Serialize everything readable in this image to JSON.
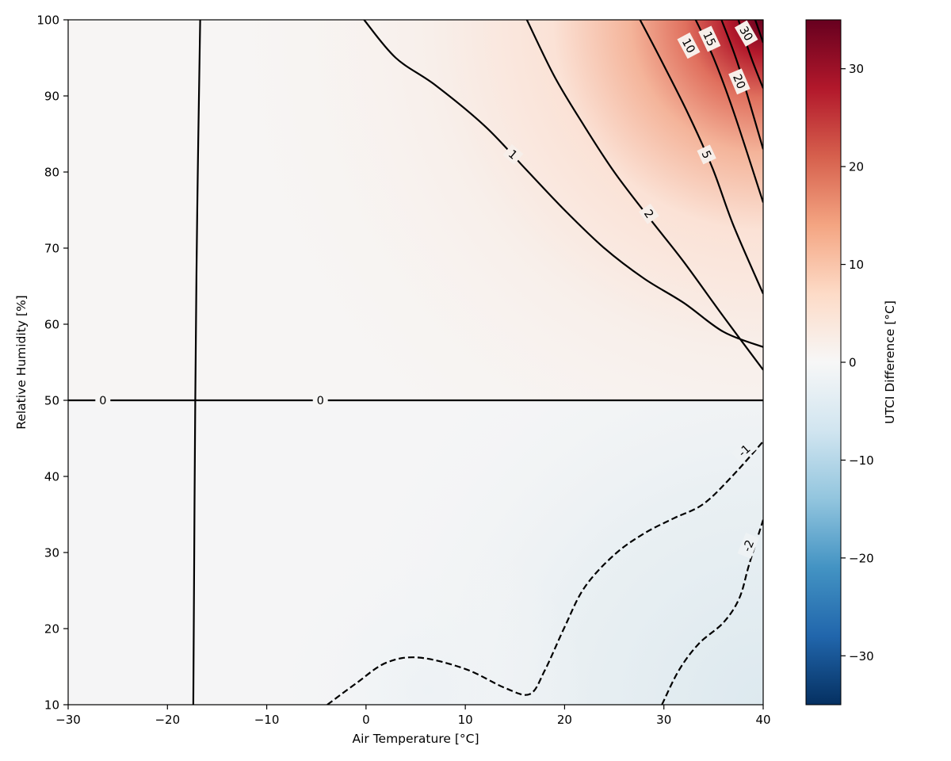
{
  "chart_data": {
    "type": "contour",
    "xlabel": "Air Temperature [°C]",
    "ylabel": "Relative Humidity [%]",
    "xlim": [
      -30,
      40
    ],
    "ylim": [
      10,
      100
    ],
    "x_ticks": [
      -30,
      -20,
      -10,
      0,
      10,
      20,
      30,
      40
    ],
    "y_ticks": [
      10,
      20,
      30,
      40,
      50,
      60,
      70,
      80,
      90,
      100
    ],
    "x_tick_labels": [
      "−30",
      "−20",
      "−10",
      "0",
      "10",
      "20",
      "30",
      "40"
    ],
    "y_tick_labels": [
      "10",
      "20",
      "30",
      "40",
      "50",
      "60",
      "70",
      "80",
      "90",
      "100"
    ],
    "colorbar": {
      "label": "UTCI Difference [°C]",
      "range": [
        -35,
        35
      ],
      "ticks": [
        -30,
        -20,
        -10,
        0,
        10,
        20,
        30
      ],
      "tick_labels": [
        "−30",
        "−20",
        "−10",
        "0",
        "10",
        "20",
        "30"
      ],
      "colormap": "RdBu_r",
      "colors": [
        "#053061",
        "#2166ac",
        "#4393c3",
        "#92c5de",
        "#d1e5f0",
        "#f7f7f7",
        "#fddbc7",
        "#f4a582",
        "#d6604d",
        "#b2182b",
        "#67001f"
      ]
    },
    "contours": [
      {
        "level": 0,
        "label": "0",
        "style": "solid",
        "points": [
          [
            -30,
            50
          ],
          [
            -17.2,
            50
          ],
          [
            40,
            50
          ]
        ]
      },
      {
        "level": 0,
        "label": "",
        "style": "solid",
        "points": [
          [
            -16.7,
            100
          ],
          [
            -17.0,
            75
          ],
          [
            -17.2,
            50
          ],
          [
            -17.3,
            30
          ],
          [
            -17.4,
            10
          ]
        ]
      },
      {
        "level": 1,
        "label": "1",
        "style": "solid",
        "points": [
          [
            -0.2,
            100
          ],
          [
            3,
            95
          ],
          [
            7,
            91.4
          ],
          [
            12,
            86
          ],
          [
            16,
            80.5
          ],
          [
            20,
            75
          ],
          [
            24,
            70
          ],
          [
            28,
            66
          ],
          [
            32,
            62.8
          ],
          [
            36,
            59
          ],
          [
            40,
            57
          ]
        ]
      },
      {
        "level": 2,
        "label": "2",
        "style": "solid",
        "points": [
          [
            16.2,
            100
          ],
          [
            19,
            92.5
          ],
          [
            22,
            86
          ],
          [
            25,
            80
          ],
          [
            28.5,
            74
          ],
          [
            32,
            68.2
          ],
          [
            36,
            61
          ],
          [
            40,
            54
          ]
        ]
      },
      {
        "level": 5,
        "label": "5",
        "style": "solid",
        "points": [
          [
            27.6,
            100
          ],
          [
            30,
            94
          ],
          [
            32.5,
            87.5
          ],
          [
            34.9,
            80.5
          ],
          [
            37,
            73
          ],
          [
            40,
            64
          ]
        ]
      },
      {
        "level": 10,
        "label": "10",
        "style": "solid",
        "points": [
          [
            33.2,
            100
          ],
          [
            35,
            95
          ],
          [
            37,
            88
          ],
          [
            40,
            76
          ]
        ]
      },
      {
        "level": 15,
        "label": "15",
        "style": "solid",
        "points": [
          [
            35.8,
            100
          ],
          [
            37.5,
            94
          ],
          [
            40,
            83
          ]
        ]
      },
      {
        "level": 20,
        "label": "20",
        "style": "solid",
        "points": [
          [
            37.5,
            100
          ],
          [
            38.8,
            95
          ],
          [
            40,
            91
          ]
        ]
      },
      {
        "level": 30,
        "label": "30",
        "style": "solid",
        "points": [
          [
            39.2,
            100
          ],
          [
            40,
            97
          ]
        ]
      },
      {
        "level": -1,
        "label": "-1",
        "style": "dashed",
        "points": [
          [
            -3.9,
            10
          ],
          [
            -1,
            12.8
          ],
          [
            2,
            15.5
          ],
          [
            5.3,
            16.2
          ],
          [
            10,
            14.7
          ],
          [
            14,
            12.2
          ],
          [
            16.5,
            11.4
          ],
          [
            18,
            14.5
          ],
          [
            20,
            20.2
          ],
          [
            22,
            25.4
          ],
          [
            25,
            29.7
          ],
          [
            28,
            32.5
          ],
          [
            31,
            34.5
          ],
          [
            34,
            36.4
          ],
          [
            37,
            40.2
          ],
          [
            40,
            44.6
          ]
        ]
      },
      {
        "level": -2,
        "label": "-2",
        "style": "dashed",
        "points": [
          [
            29.8,
            10
          ],
          [
            31.5,
            14.5
          ],
          [
            33.5,
            18
          ],
          [
            36,
            20.8
          ],
          [
            37.6,
            24
          ],
          [
            38.6,
            28.5
          ],
          [
            40,
            34.3
          ]
        ]
      }
    ],
    "contour_labels": [
      {
        "text": "0",
        "x": -26.5,
        "y": 50,
        "angle": 0
      },
      {
        "text": "0",
        "x": -4.6,
        "y": 50,
        "angle": 0
      },
      {
        "text": "1",
        "x": 14.8,
        "y": 82.3,
        "angle": 40
      },
      {
        "text": "2",
        "x": 28.5,
        "y": 74.5,
        "angle": 55
      },
      {
        "text": "5",
        "x": 34.3,
        "y": 82.3,
        "angle": 65
      },
      {
        "text": "10",
        "x": 32.5,
        "y": 96.6,
        "angle": 62
      },
      {
        "text": "15",
        "x": 34.6,
        "y": 97.5,
        "angle": 65
      },
      {
        "text": "20",
        "x": 37.6,
        "y": 91.9,
        "angle": 67
      },
      {
        "text": "30",
        "x": 38.3,
        "y": 98.2,
        "angle": 60
      },
      {
        "text": "-1",
        "x": 38.1,
        "y": 43.4,
        "angle": -42
      },
      {
        "text": "-2",
        "x": 38.5,
        "y": 30.9,
        "angle": -68
      }
    ]
  }
}
